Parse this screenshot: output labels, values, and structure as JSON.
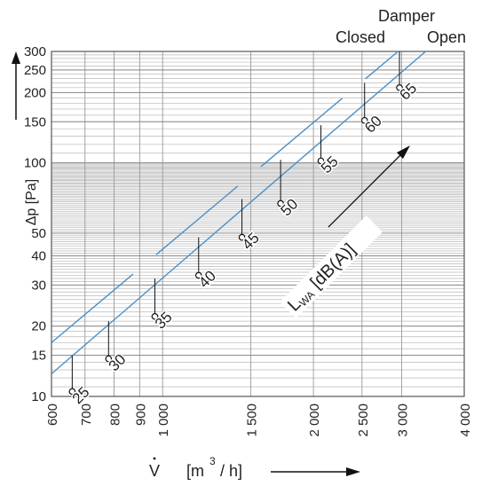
{
  "chart_data": {
    "type": "line",
    "x_scale": "log",
    "y_scale": "log",
    "xlim": [
      600,
      4000
    ],
    "ylim": [
      10,
      300
    ],
    "x_ticks": [
      {
        "v": 600,
        "label": "600"
      },
      {
        "v": 700,
        "label": "700"
      },
      {
        "v": 800,
        "label": "800"
      },
      {
        "v": 900,
        "label": "900"
      },
      {
        "v": 1000,
        "label": "1 000"
      },
      {
        "v": 1500,
        "label": "1 500"
      },
      {
        "v": 2000,
        "label": "2 000"
      },
      {
        "v": 2500,
        "label": "2 500"
      },
      {
        "v": 3000,
        "label": "3 000"
      },
      {
        "v": 4000,
        "label": "4 000"
      }
    ],
    "y_ticks": [
      {
        "v": 10,
        "label": "10"
      },
      {
        "v": 15,
        "label": "15"
      },
      {
        "v": 20,
        "label": "20"
      },
      {
        "v": 30,
        "label": "30"
      },
      {
        "v": 40,
        "label": "40"
      },
      {
        "v": 50,
        "label": "50"
      },
      {
        "v": 100,
        "label": "100"
      },
      {
        "v": 150,
        "label": "150"
      },
      {
        "v": 200,
        "label": "200"
      },
      {
        "v": 250,
        "label": "250"
      },
      {
        "v": 300,
        "label": "300"
      }
    ],
    "xlabel": {
      "symbol": "V",
      "unit_open": "[m",
      "unit_sup": "3",
      "unit_close": "/ h]"
    },
    "ylabel": "Δp [Pa]",
    "damper_label": "Damper",
    "damper_closed_label": "Closed",
    "damper_open_label": "Open",
    "lwa_label": {
      "main": "L",
      "sub": "WA",
      "rest": "[dB(A)]"
    },
    "grid": true,
    "series": [
      {
        "name": "Open",
        "color": "#4a90c8",
        "x": [
          600,
          3350
        ],
        "y": [
          12.5,
          300
        ]
      },
      {
        "name": "Closed",
        "color": "#4a90c8",
        "x": [
          600,
          2950
        ],
        "y": [
          17,
          300
        ]
      }
    ],
    "points": [
      {
        "x": 660,
        "y": 10.5,
        "label": "25",
        "closed_y": 15
      },
      {
        "x": 780,
        "y": 14.5,
        "label": "30",
        "closed_y": 21
      },
      {
        "x": 965,
        "y": 22,
        "label": "35",
        "closed_y": 32
      },
      {
        "x": 1180,
        "y": 33,
        "label": "40",
        "closed_y": 48
      },
      {
        "x": 1440,
        "y": 48,
        "label": "45",
        "closed_y": 70
      },
      {
        "x": 1720,
        "y": 67,
        "label": "50",
        "closed_y": 103
      },
      {
        "x": 2070,
        "y": 102,
        "label": "55",
        "closed_y": 145
      },
      {
        "x": 2530,
        "y": 152,
        "label": "60",
        "closed_y": 220
      },
      {
        "x": 2970,
        "y": 210,
        "label": "65",
        "closed_y": 300
      }
    ]
  }
}
